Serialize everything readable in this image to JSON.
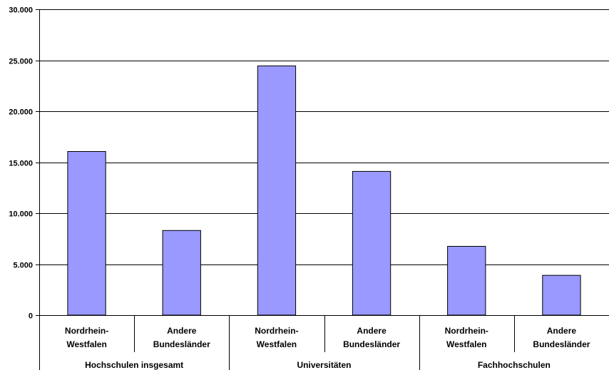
{
  "chart_data": {
    "type": "bar",
    "title": "",
    "xlabel": "",
    "ylabel": "",
    "ylim": [
      0,
      30000
    ],
    "y_ticks": [
      0,
      5000,
      10000,
      15000,
      20000,
      25000,
      30000
    ],
    "y_tick_labels": [
      "0",
      "5.000",
      "10.000",
      "15.000",
      "20.000",
      "25.000",
      "30.000"
    ],
    "grid": true,
    "bar_color": "#9999ff",
    "bar_edge_color": "#000000",
    "groups": [
      {
        "label": "Hochschulen insgesamt",
        "categories": [
          {
            "line1": "Nordrhein-",
            "line2": "Westfalen",
            "value": 16050
          },
          {
            "line1": "Andere",
            "line2": "Bundesländer",
            "value": 8300
          }
        ]
      },
      {
        "label": "Universitäten",
        "categories": [
          {
            "line1": "Nordrhein-",
            "line2": "Westfalen",
            "value": 24450
          },
          {
            "line1": "Andere",
            "line2": "Bundesländer",
            "value": 14100
          }
        ]
      },
      {
        "label": "Fachhochschulen",
        "categories": [
          {
            "line1": "Nordrhein-",
            "line2": "Westfalen",
            "value": 6750
          },
          {
            "line1": "Andere",
            "line2": "Bundesländer",
            "value": 3900
          }
        ]
      }
    ]
  }
}
